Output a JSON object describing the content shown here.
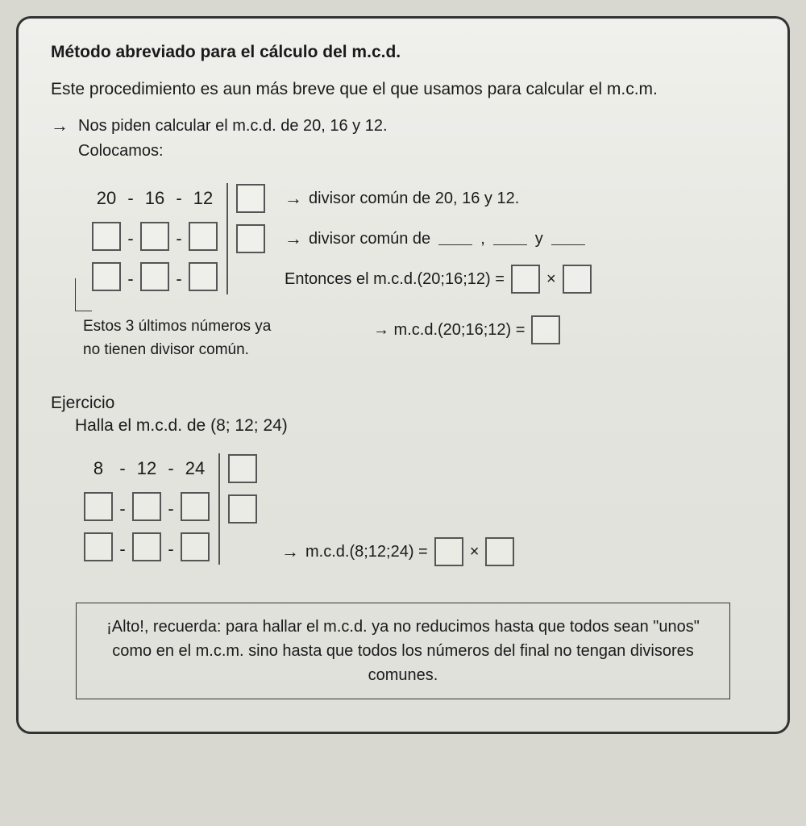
{
  "title": "Método abreviado para el cálculo del m.c.d.",
  "intro": "Este procedimiento es aun más breve que el que usamos para calcular el m.c.m.",
  "step1": "Nos piden calcular el m.c.d. de 20, 16 y 12.",
  "step1b": "Colocamos:",
  "example1": {
    "row1": {
      "a": "20",
      "b": "16",
      "c": "12"
    },
    "right1": "divisor común de 20, 16 y 12.",
    "right2a": "divisor común de",
    "right2y": "y",
    "right3a": "Entonces el m.c.d.(20;16;12) =",
    "mult": "×"
  },
  "note_left_1": "Estos 3 últimos números ya",
  "note_left_2": "no tienen divisor común.",
  "note_right": "→ m.c.d.(20;16;12) =",
  "ejercicio_title": "Ejercicio",
  "ejercicio_sub": "Halla el m.c.d. de (8; 12; 24)",
  "example2": {
    "row1": {
      "a": "8",
      "b": "12",
      "c": "24"
    }
  },
  "result2": "m.c.d.(8;12;24) =",
  "mult2": "×",
  "alto": "¡Alto!, recuerda: para hallar el m.c.d. ya no reducimos hasta que todos sean \"unos\" como en el m.c.m. sino hasta que todos los números del final no tengan divisores comunes.",
  "styling": {
    "page_bg": "#e8e8e4",
    "border_color": "#333",
    "border_radius": 18,
    "box_border": "#555",
    "font_family": "Arial, Helvetica, sans-serif",
    "title_fontsize": 21,
    "body_fontsize": 20,
    "box_size": 36
  }
}
